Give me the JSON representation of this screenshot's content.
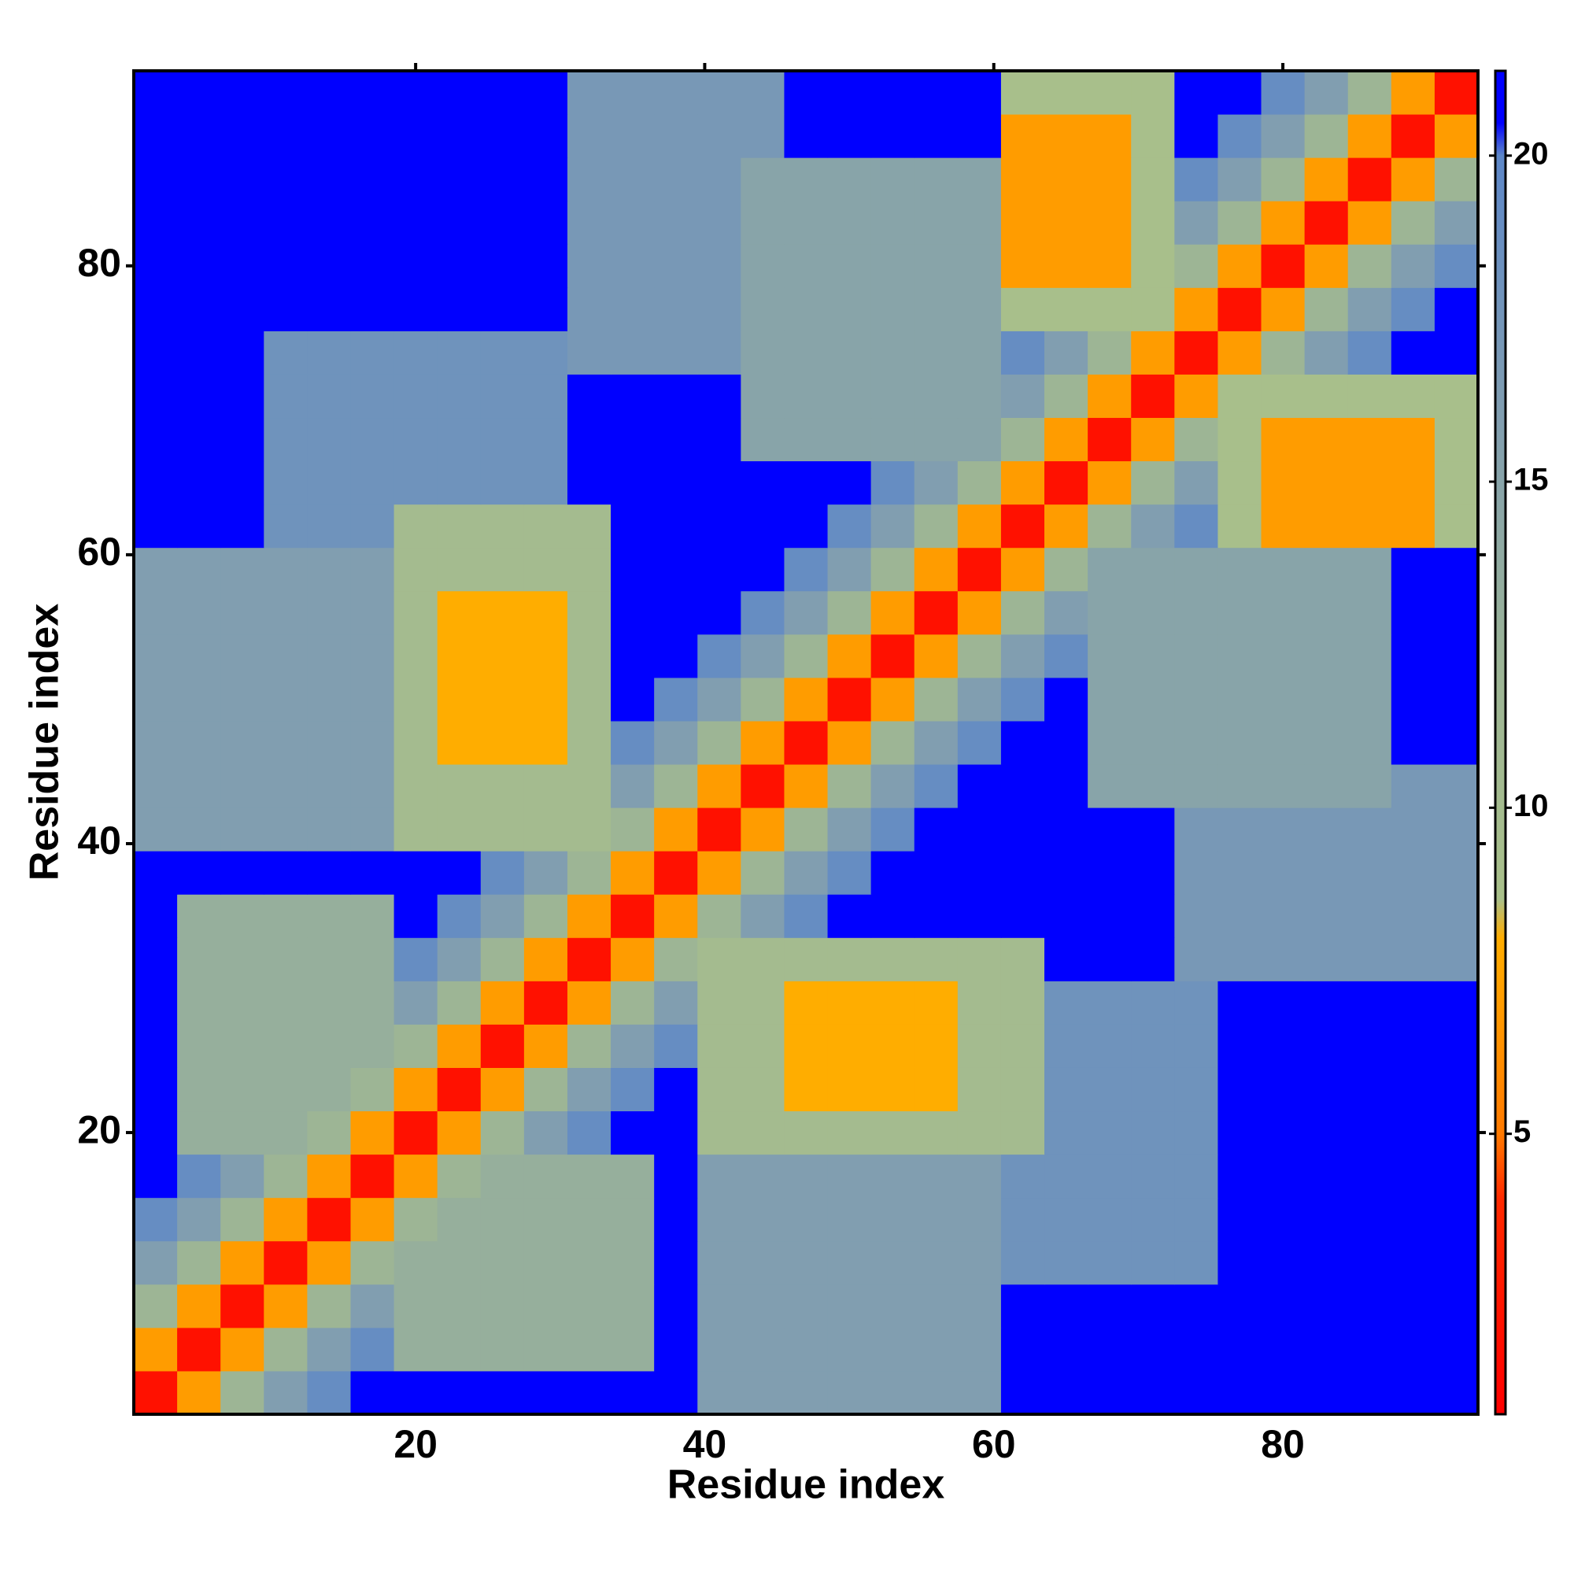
{
  "chart_data": {
    "type": "heatmap",
    "xlabel": "Residue index",
    "ylabel": "Residue index",
    "xlim": [
      0.5,
      93.5
    ],
    "ylim": [
      0.5,
      93.5
    ],
    "xticks": [
      20,
      40,
      60,
      80
    ],
    "yticks": [
      20,
      40,
      60,
      80
    ],
    "xbins": [
      0.5,
      3.5,
      6.5,
      9.5,
      12.5,
      15.5,
      18.5,
      21.5,
      24.5,
      27.5,
      30.5,
      33.5,
      36.5,
      39.5,
      42.5,
      45.5,
      48.5,
      51.5,
      54.5,
      57.5,
      60.5,
      63.5,
      66.5,
      69.5,
      72.5,
      75.5,
      78.5,
      81.5,
      84.5,
      87.5,
      90.5,
      93.5
    ],
    "ybins": [
      0.5,
      3.5,
      6.5,
      9.5,
      12.5,
      15.5,
      18.5,
      21.5,
      24.5,
      27.5,
      30.5,
      33.5,
      36.5,
      39.5,
      42.5,
      45.5,
      48.5,
      51.5,
      54.5,
      57.5,
      60.5,
      63.5,
      66.5,
      69.5,
      72.5,
      75.5,
      78.5,
      81.5,
      84.5,
      87.5,
      90.5,
      93.5
    ],
    "colorbar_lim": [
      0.7,
      21.3
    ],
    "colorbar_ticks": [
      5,
      10,
      15,
      20
    ],
    "colorscale": [
      [
        0.7,
        "#ff0000"
      ],
      [
        4,
        "#ff2a00"
      ],
      [
        5,
        "#ff7a00"
      ],
      [
        8,
        "#ffad00"
      ],
      [
        8.6,
        "#a9c08a"
      ],
      [
        12,
        "#9db595"
      ],
      [
        16,
        "#819eb0"
      ],
      [
        20,
        "#5d87c8"
      ],
      [
        20.5,
        "#0000ff"
      ],
      [
        21.3,
        "#0000ff"
      ]
    ],
    "z": [
      [
        2,
        7,
        12,
        16,
        19,
        21,
        21,
        21,
        21,
        21,
        21,
        21,
        21,
        16,
        16,
        16,
        16,
        16,
        16,
        16,
        21,
        21,
        21,
        21,
        21,
        21,
        21,
        21,
        21,
        21,
        21
      ],
      [
        7,
        2,
        7,
        12,
        16,
        19,
        13,
        13,
        13,
        13,
        13,
        13,
        21,
        16,
        16,
        16,
        16,
        16,
        16,
        16,
        21,
        21,
        21,
        21,
        21,
        21,
        21,
        21,
        21,
        21,
        21
      ],
      [
        12,
        7,
        2,
        7,
        12,
        16,
        13,
        13,
        13,
        13,
        13,
        13,
        21,
        16,
        16,
        16,
        16,
        16,
        16,
        16,
        21,
        21,
        21,
        21,
        21,
        21,
        21,
        21,
        21,
        21,
        21
      ],
      [
        16,
        12,
        7,
        2,
        7,
        12,
        13,
        13,
        13,
        13,
        13,
        13,
        21,
        16,
        16,
        16,
        16,
        16,
        16,
        16,
        18,
        18,
        18,
        18,
        18,
        21,
        21,
        21,
        21,
        21,
        21
      ],
      [
        19,
        16,
        12,
        7,
        2,
        7,
        12,
        13,
        13,
        13,
        13,
        13,
        21,
        16,
        16,
        16,
        16,
        16,
        16,
        16,
        18,
        18,
        18,
        18,
        18,
        21,
        21,
        21,
        21,
        21,
        21
      ],
      [
        21,
        19,
        16,
        12,
        7,
        2,
        7,
        12,
        13,
        13,
        13,
        13,
        21,
        16,
        16,
        16,
        16,
        16,
        16,
        16,
        18,
        18,
        18,
        18,
        18,
        21,
        21,
        21,
        21,
        21,
        21
      ],
      [
        21,
        13,
        13,
        13,
        12,
        7,
        2,
        7,
        12,
        16,
        19,
        21,
        21,
        10,
        10,
        10,
        10,
        10,
        10,
        10,
        10,
        18,
        18,
        18,
        18,
        21,
        21,
        21,
        21,
        21,
        21
      ],
      [
        21,
        13,
        13,
        13,
        13,
        12,
        7,
        2,
        7,
        12,
        16,
        19,
        21,
        10,
        10,
        8,
        8,
        8,
        8,
        10,
        10,
        18,
        18,
        18,
        18,
        21,
        21,
        21,
        21,
        21,
        21
      ],
      [
        21,
        13,
        13,
        13,
        13,
        13,
        12,
        7,
        2,
        7,
        12,
        16,
        19,
        10,
        10,
        8,
        8,
        8,
        8,
        10,
        10,
        18,
        18,
        18,
        18,
        21,
        21,
        21,
        21,
        21,
        21
      ],
      [
        21,
        13,
        13,
        13,
        13,
        13,
        16,
        12,
        7,
        2,
        7,
        12,
        16,
        10,
        10,
        8,
        8,
        8,
        8,
        10,
        10,
        18,
        18,
        18,
        18,
        21,
        21,
        21,
        21,
        21,
        21
      ],
      [
        21,
        13,
        13,
        13,
        13,
        13,
        19,
        16,
        12,
        7,
        2,
        7,
        12,
        10,
        10,
        10,
        10,
        10,
        10,
        10,
        10,
        21,
        21,
        21,
        17,
        17,
        17,
        17,
        17,
        17,
        17
      ],
      [
        21,
        13,
        13,
        13,
        13,
        13,
        21,
        19,
        16,
        12,
        7,
        2,
        7,
        12,
        16,
        19,
        21,
        21,
        21,
        21,
        21,
        21,
        21,
        21,
        17,
        17,
        17,
        17,
        17,
        17,
        17
      ],
      [
        21,
        21,
        21,
        21,
        21,
        21,
        21,
        21,
        19,
        16,
        12,
        7,
        2,
        7,
        12,
        16,
        19,
        21,
        21,
        21,
        21,
        21,
        21,
        21,
        17,
        17,
        17,
        17,
        17,
        17,
        17
      ],
      [
        16,
        16,
        16,
        16,
        16,
        16,
        10,
        10,
        10,
        10,
        10,
        12,
        7,
        2,
        7,
        12,
        16,
        19,
        21,
        21,
        21,
        21,
        21,
        21,
        17,
        17,
        17,
        17,
        17,
        17,
        17
      ],
      [
        16,
        16,
        16,
        16,
        16,
        16,
        10,
        10,
        10,
        10,
        10,
        16,
        12,
        7,
        2,
        7,
        12,
        16,
        19,
        21,
        21,
        21,
        15,
        15,
        15,
        15,
        15,
        15,
        15,
        17,
        17
      ],
      [
        16,
        16,
        16,
        16,
        16,
        16,
        10,
        8,
        8,
        8,
        10,
        19,
        16,
        12,
        7,
        2,
        7,
        12,
        16,
        19,
        21,
        21,
        15,
        15,
        15,
        15,
        15,
        15,
        15,
        21,
        21
      ],
      [
        16,
        16,
        16,
        16,
        16,
        16,
        10,
        8,
        8,
        8,
        10,
        21,
        19,
        16,
        12,
        7,
        2,
        7,
        12,
        16,
        19,
        21,
        15,
        15,
        15,
        15,
        15,
        15,
        15,
        21,
        21
      ],
      [
        16,
        16,
        16,
        16,
        16,
        16,
        10,
        8,
        8,
        8,
        10,
        21,
        21,
        19,
        16,
        12,
        7,
        2,
        7,
        12,
        16,
        19,
        15,
        15,
        15,
        15,
        15,
        15,
        15,
        21,
        21
      ],
      [
        16,
        16,
        16,
        16,
        16,
        16,
        10,
        8,
        8,
        8,
        10,
        21,
        21,
        21,
        19,
        16,
        12,
        7,
        2,
        7,
        12,
        16,
        15,
        15,
        15,
        15,
        15,
        15,
        15,
        21,
        21
      ],
      [
        16,
        16,
        16,
        16,
        16,
        16,
        10,
        10,
        10,
        10,
        10,
        21,
        21,
        21,
        21,
        19,
        16,
        12,
        7,
        2,
        7,
        12,
        15,
        15,
        15,
        15,
        15,
        15,
        15,
        21,
        21
      ],
      [
        21,
        21,
        21,
        18,
        18,
        18,
        10,
        10,
        10,
        10,
        10,
        21,
        21,
        21,
        21,
        21,
        19,
        16,
        12,
        7,
        2,
        7,
        12,
        16,
        19,
        9,
        7,
        7,
        7,
        7,
        9
      ],
      [
        21,
        21,
        21,
        18,
        18,
        18,
        18,
        18,
        18,
        18,
        21,
        21,
        21,
        21,
        21,
        21,
        21,
        19,
        16,
        12,
        7,
        2,
        7,
        12,
        16,
        9,
        7,
        7,
        7,
        7,
        9
      ],
      [
        21,
        21,
        21,
        18,
        18,
        18,
        18,
        18,
        18,
        18,
        21,
        21,
        21,
        21,
        15,
        15,
        15,
        15,
        15,
        15,
        12,
        7,
        2,
        7,
        12,
        9,
        7,
        7,
        7,
        7,
        9
      ],
      [
        21,
        21,
        21,
        18,
        18,
        18,
        18,
        18,
        18,
        18,
        21,
        21,
        21,
        21,
        15,
        15,
        15,
        15,
        15,
        15,
        16,
        12,
        7,
        2,
        7,
        9,
        9,
        9,
        9,
        9,
        9
      ],
      [
        21,
        21,
        21,
        18,
        18,
        18,
        18,
        18,
        18,
        18,
        17,
        17,
        17,
        17,
        15,
        15,
        15,
        15,
        15,
        15,
        19,
        16,
        12,
        7,
        2,
        7,
        12,
        16,
        19,
        21,
        21
      ],
      [
        21,
        21,
        21,
        21,
        21,
        21,
        21,
        21,
        21,
        21,
        17,
        17,
        17,
        17,
        15,
        15,
        15,
        15,
        15,
        15,
        9,
        9,
        9,
        9,
        7,
        2,
        7,
        12,
        16,
        19,
        21
      ],
      [
        21,
        21,
        21,
        21,
        21,
        21,
        21,
        21,
        21,
        21,
        17,
        17,
        17,
        17,
        15,
        15,
        15,
        15,
        15,
        15,
        7,
        7,
        7,
        9,
        12,
        7,
        2,
        7,
        12,
        16,
        19
      ],
      [
        21,
        21,
        21,
        21,
        21,
        21,
        21,
        21,
        21,
        21,
        17,
        17,
        17,
        17,
        15,
        15,
        15,
        15,
        15,
        15,
        7,
        7,
        7,
        9,
        16,
        12,
        7,
        2,
        7,
        12,
        16
      ],
      [
        21,
        21,
        21,
        21,
        21,
        21,
        21,
        21,
        21,
        21,
        17,
        17,
        17,
        17,
        15,
        15,
        15,
        15,
        15,
        15,
        7,
        7,
        7,
        9,
        19,
        16,
        12,
        7,
        2,
        7,
        12
      ],
      [
        21,
        21,
        21,
        21,
        21,
        21,
        21,
        21,
        21,
        21,
        17,
        17,
        17,
        17,
        17,
        21,
        21,
        21,
        21,
        21,
        7,
        7,
        7,
        9,
        21,
        19,
        16,
        12,
        7,
        2,
        7
      ],
      [
        21,
        21,
        21,
        21,
        21,
        21,
        21,
        21,
        21,
        21,
        17,
        17,
        17,
        17,
        17,
        21,
        21,
        21,
        21,
        21,
        9,
        9,
        9,
        9,
        21,
        21,
        19,
        16,
        12,
        7,
        2
      ]
    ]
  }
}
